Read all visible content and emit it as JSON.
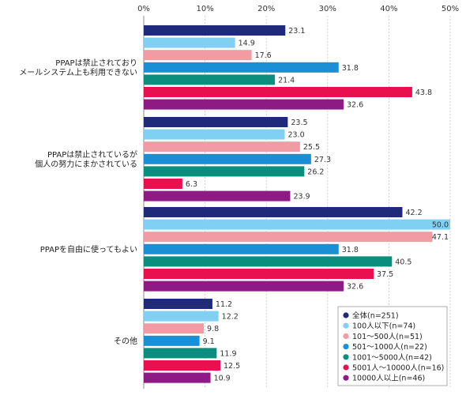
{
  "chart_data": {
    "type": "bar",
    "orientation": "horizontal",
    "categories": [
      [
        "PPAPは禁止されており",
        "メールシステム上も利用できない"
      ],
      [
        "PPAPは禁止されているが",
        "個人の努力にまかされている"
      ],
      [
        "PPAPを自由に使ってもよい"
      ],
      [
        "その他"
      ]
    ],
    "series": [
      {
        "name": "全体(n=251)",
        "color": "#1f2a7a",
        "values": [
          23.1,
          23.5,
          42.2,
          11.2
        ]
      },
      {
        "name": "100人以下(n=74)",
        "color": "#7fd0f2",
        "values": [
          14.9,
          23.0,
          50.0,
          12.2
        ]
      },
      {
        "name": "101〜500人(n=51)",
        "color": "#f19ca4",
        "values": [
          17.6,
          25.5,
          47.1,
          9.8
        ]
      },
      {
        "name": "501〜1000人(n=22)",
        "color": "#1a8fd6",
        "values": [
          31.8,
          27.3,
          31.8,
          9.1
        ]
      },
      {
        "name": "1001〜5000人(n=42)",
        "color": "#0a8f7f",
        "values": [
          21.4,
          26.2,
          40.5,
          11.9
        ]
      },
      {
        "name": "5001人〜10000人(n=16)",
        "color": "#e8104f",
        "values": [
          43.8,
          6.3,
          37.5,
          12.5
        ]
      },
      {
        "name": "10000人以上(n=46)",
        "color": "#8e1a86",
        "values": [
          32.6,
          23.9,
          32.6,
          10.9
        ]
      }
    ],
    "value_labels": [
      [
        "23.1",
        "23.5",
        "42.2",
        "11.2"
      ],
      [
        "14.9",
        "23.0",
        "50.0",
        "12.2"
      ],
      [
        "17.6",
        "25.5",
        "47.1",
        "9.8"
      ],
      [
        "31.8",
        "27.3",
        "31.8",
        "9.1"
      ],
      [
        "21.4",
        "26.2",
        "40.5",
        "11.9"
      ],
      [
        "43.8",
        "6.3",
        "37.5",
        "12.5"
      ],
      [
        "32.6",
        "23.9",
        "32.6",
        "10.9"
      ]
    ],
    "xlim": [
      0,
      50
    ],
    "xticks": [
      0,
      10,
      20,
      30,
      40,
      50
    ],
    "xtick_labels": [
      "0%",
      "10%",
      "20%",
      "30%",
      "40%",
      "50%"
    ],
    "grid": true,
    "legend_position": "bottom-right",
    "title": "",
    "xlabel": "",
    "ylabel": ""
  }
}
